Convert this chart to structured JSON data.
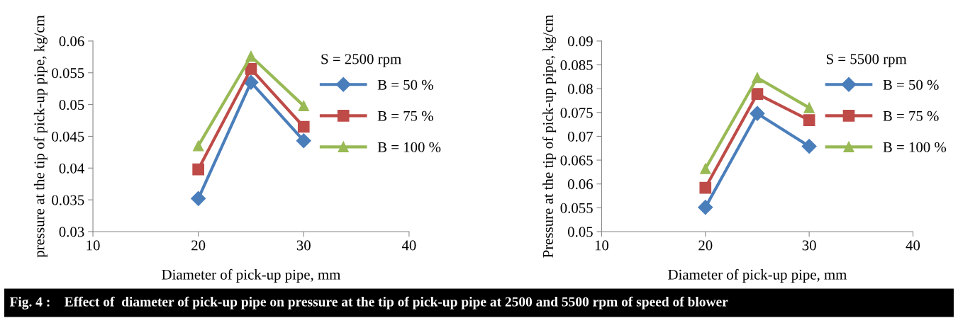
{
  "chart_data": [
    {
      "type": "line",
      "x": [
        20,
        25,
        30
      ],
      "xlabel": "Diameter of pick-up pipe, mm",
      "ylabel": "pressure at the tip of pick-up pipe, kg/cm",
      "xlim": [
        10,
        40
      ],
      "xticks": [
        10,
        20,
        30,
        40
      ],
      "ylim": [
        0.03,
        0.06
      ],
      "yticks": [
        0.03,
        0.035,
        0.04,
        0.045,
        0.05,
        0.055,
        0.06
      ],
      "grid": false,
      "legend": "right",
      "annotations": [
        "S = 2500 rpm",
        "Fig. 4 :    Effect of  diameter of pick-up pipe on pressure at the tip of pick-up pipe at 2500 and 5500 rpm of speed of blower"
      ],
      "series": [
        {
          "name": "B = 50 %",
          "color": "#4a7ebb",
          "marker": "diamond",
          "values": [
            0.0352,
            0.0535,
            0.0443
          ]
        },
        {
          "name": "B = 75 %",
          "color": "#be4b48",
          "marker": "square",
          "values": [
            0.0398,
            0.0556,
            0.0465
          ]
        },
        {
          "name": "B = 100 %",
          "color": "#98b954",
          "marker": "triangle",
          "values": [
            0.0435,
            0.0576,
            0.0498
          ]
        }
      ]
    },
    {
      "type": "line",
      "x": [
        20,
        25,
        30
      ],
      "xlabel": "Diameter of pick-up pipe, mm",
      "ylabel": "Pressure at the tip of pick-up pipe, kg/cm",
      "xlim": [
        10,
        40
      ],
      "xticks": [
        10,
        20,
        30,
        40
      ],
      "ylim": [
        0.05,
        0.09
      ],
      "yticks": [
        0.05,
        0.055,
        0.06,
        0.065,
        0.07,
        0.075,
        0.08,
        0.085,
        0.09
      ],
      "grid": false,
      "legend": "right",
      "annotations": [
        "S = 5500 rpm"
      ],
      "series": [
        {
          "name": "B = 50 %",
          "color": "#4a7ebb",
          "marker": "diamond",
          "values": [
            0.0551,
            0.0748,
            0.0679
          ]
        },
        {
          "name": "B = 75 %",
          "color": "#be4b48",
          "marker": "square",
          "values": [
            0.0592,
            0.0789,
            0.0734
          ]
        },
        {
          "name": "B = 100 %",
          "color": "#98b954",
          "marker": "triangle",
          "values": [
            0.0632,
            0.0823,
            0.076
          ]
        }
      ]
    }
  ]
}
